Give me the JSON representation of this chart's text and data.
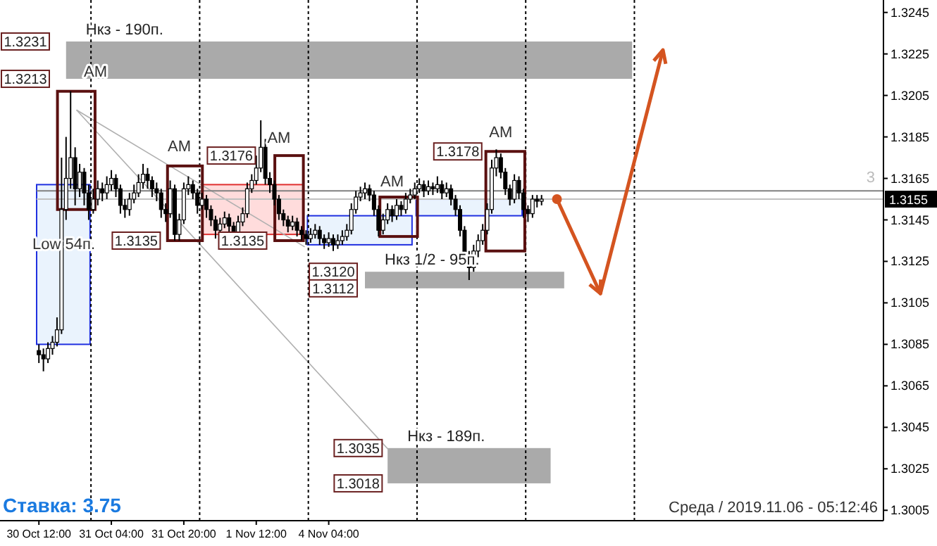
{
  "chart_data": {
    "type": "candlestick",
    "categories": [
      "30 Oct 12:00",
      null,
      null,
      null,
      null,
      null,
      null,
      null,
      null,
      null,
      null,
      null,
      null,
      null,
      null,
      null,
      "31 Oct 04:00",
      null,
      null,
      null,
      null,
      null,
      null,
      null,
      null,
      null,
      null,
      null,
      null,
      null,
      null,
      null,
      "31 Oct 20:00",
      null,
      null,
      null,
      null,
      null,
      null,
      null,
      null,
      null,
      null,
      null,
      null,
      null,
      null,
      null,
      "1 Nov 12:00",
      null,
      null,
      null,
      null,
      null,
      null,
      null,
      null,
      null,
      null,
      null,
      null,
      null,
      null,
      null,
      "4 Nov 04:00",
      null,
      null,
      null,
      null,
      null,
      null,
      null,
      null,
      null,
      null,
      null,
      null,
      null,
      null,
      null,
      null,
      null,
      null,
      null,
      null,
      null,
      null,
      null,
      null,
      null,
      null,
      null,
      null,
      null,
      null,
      null,
      null,
      null,
      null,
      null,
      null,
      null,
      null,
      null,
      null,
      null,
      null,
      null,
      null,
      null,
      null,
      null,
      null,
      null,
      null,
      null,
      null,
      null,
      null,
      null,
      null,
      null,
      null,
      null,
      null,
      null,
      null,
      null,
      null,
      null,
      null,
      null,
      null,
      null,
      null,
      null,
      null,
      null,
      null,
      null,
      null,
      null,
      null,
      null,
      null,
      null,
      null,
      null,
      null,
      null,
      null,
      null,
      null,
      null,
      null,
      null,
      null,
      null,
      null,
      null,
      null,
      null,
      null,
      null,
      null,
      null,
      null,
      null,
      null,
      null,
      null,
      null,
      null,
      null,
      null,
      null,
      null,
      null,
      null,
      null,
      null,
      null,
      null,
      null,
      null,
      null,
      null
    ],
    "ohlc": [
      [
        1.3082,
        1.3085,
        1.3076,
        1.308
      ],
      [
        1.308,
        1.3083,
        1.3072,
        1.3078
      ],
      [
        1.3078,
        1.3086,
        1.3076,
        1.3083
      ],
      [
        1.3083,
        1.3089,
        1.308,
        1.3086
      ],
      [
        1.3086,
        1.3098,
        1.3084,
        1.3092
      ],
      [
        1.3092,
        1.3175,
        1.309,
        1.315
      ],
      [
        1.315,
        1.3185,
        1.3145,
        1.3165
      ],
      [
        1.3165,
        1.3207,
        1.316,
        1.3175
      ],
      [
        1.3175,
        1.318,
        1.3152,
        1.316
      ],
      [
        1.316,
        1.3172,
        1.3156,
        1.3168
      ],
      [
        1.3168,
        1.317,
        1.3152,
        1.3158
      ],
      [
        1.3158,
        1.3162,
        1.3145,
        1.315
      ],
      [
        1.315,
        1.316,
        1.3148,
        1.3155
      ],
      [
        1.3155,
        1.3164,
        1.3152,
        1.316
      ],
      [
        1.316,
        1.3163,
        1.3154,
        1.3158
      ],
      [
        1.3158,
        1.3166,
        1.3155,
        1.3162
      ],
      [
        1.3162,
        1.3169,
        1.3159,
        1.3165
      ],
      [
        1.3165,
        1.3167,
        1.3156,
        1.316
      ],
      [
        1.316,
        1.3162,
        1.3148,
        1.3152
      ],
      [
        1.3152,
        1.3155,
        1.3146,
        1.315
      ],
      [
        1.315,
        1.3158,
        1.3147,
        1.3155
      ],
      [
        1.3155,
        1.3162,
        1.3153,
        1.3158
      ],
      [
        1.3158,
        1.3167,
        1.3156,
        1.3163
      ],
      [
        1.3163,
        1.3172,
        1.316,
        1.3167
      ],
      [
        1.3167,
        1.317,
        1.316,
        1.3164
      ],
      [
        1.3164,
        1.3166,
        1.3156,
        1.316
      ],
      [
        1.316,
        1.3163,
        1.3154,
        1.3158
      ],
      [
        1.3158,
        1.316,
        1.3146,
        1.315
      ],
      [
        1.315,
        1.3153,
        1.3144,
        1.3148
      ],
      [
        1.3148,
        1.3164,
        1.3146,
        1.316
      ],
      [
        1.316,
        1.3162,
        1.3135,
        1.3138
      ],
      [
        1.3138,
        1.3148,
        1.3135,
        1.3145
      ],
      [
        1.3145,
        1.3163,
        1.3143,
        1.316
      ],
      [
        1.316,
        1.3166,
        1.3157,
        1.3162
      ],
      [
        1.3162,
        1.3164,
        1.3155,
        1.3158
      ],
      [
        1.3158,
        1.316,
        1.3148,
        1.3152
      ],
      [
        1.3152,
        1.3158,
        1.315,
        1.3155
      ],
      [
        1.3155,
        1.3157,
        1.3146,
        1.315
      ],
      [
        1.315,
        1.3152,
        1.3142,
        1.3145
      ],
      [
        1.3145,
        1.3147,
        1.3136,
        1.314
      ],
      [
        1.314,
        1.3146,
        1.3138,
        1.3143
      ],
      [
        1.3143,
        1.3149,
        1.3141,
        1.3146
      ],
      [
        1.3146,
        1.3148,
        1.3139,
        1.3142
      ],
      [
        1.3142,
        1.3144,
        1.3135,
        1.3138
      ],
      [
        1.3138,
        1.3147,
        1.3136,
        1.3144
      ],
      [
        1.3144,
        1.3151,
        1.3142,
        1.3148
      ],
      [
        1.3148,
        1.3163,
        1.3146,
        1.316
      ],
      [
        1.316,
        1.3167,
        1.3158,
        1.3164
      ],
      [
        1.3164,
        1.3176,
        1.3162,
        1.317
      ],
      [
        1.317,
        1.3193,
        1.3168,
        1.318
      ],
      [
        1.318,
        1.3184,
        1.3162,
        1.3165
      ],
      [
        1.3165,
        1.3168,
        1.3158,
        1.3162
      ],
      [
        1.3162,
        1.3164,
        1.3152,
        1.3155
      ],
      [
        1.3155,
        1.3157,
        1.3145,
        1.3148
      ],
      [
        1.3148,
        1.315,
        1.3142,
        1.3145
      ],
      [
        1.3145,
        1.3147,
        1.3139,
        1.3142
      ],
      [
        1.3142,
        1.3147,
        1.314,
        1.3144
      ],
      [
        1.3144,
        1.3146,
        1.3137,
        1.314
      ],
      [
        1.314,
        1.3142,
        1.3135,
        1.3138
      ],
      [
        1.3138,
        1.314,
        1.3133,
        1.3136
      ],
      [
        1.3136,
        1.3141,
        1.3134,
        1.3138
      ],
      [
        1.3138,
        1.3143,
        1.3136,
        1.314
      ],
      [
        1.314,
        1.3142,
        1.3133,
        1.3136
      ],
      [
        1.3136,
        1.3138,
        1.3131,
        1.3134
      ],
      [
        1.3134,
        1.3139,
        1.3132,
        1.3136
      ],
      [
        1.3136,
        1.3138,
        1.313,
        1.3133
      ],
      [
        1.3133,
        1.3138,
        1.3131,
        1.3135
      ],
      [
        1.3135,
        1.314,
        1.3133,
        1.3137
      ],
      [
        1.3137,
        1.3143,
        1.3135,
        1.314
      ],
      [
        1.314,
        1.3153,
        1.3138,
        1.315
      ],
      [
        1.315,
        1.3159,
        1.3148,
        1.3156
      ],
      [
        1.3156,
        1.3161,
        1.3154,
        1.3158
      ],
      [
        1.3158,
        1.3163,
        1.3155,
        1.316
      ],
      [
        1.316,
        1.3162,
        1.3154,
        1.3157
      ],
      [
        1.3157,
        1.3159,
        1.3147,
        1.315
      ],
      [
        1.315,
        1.3152,
        1.3137,
        1.314
      ],
      [
        1.314,
        1.3148,
        1.3138,
        1.3145
      ],
      [
        1.3145,
        1.3153,
        1.3143,
        1.315
      ],
      [
        1.315,
        1.3152,
        1.3144,
        1.3147
      ],
      [
        1.3147,
        1.3155,
        1.3145,
        1.3152
      ],
      [
        1.3152,
        1.3154,
        1.3147,
        1.315
      ],
      [
        1.315,
        1.3158,
        1.3148,
        1.3155
      ],
      [
        1.3155,
        1.316,
        1.3153,
        1.3157
      ],
      [
        1.3157,
        1.3163,
        1.3155,
        1.316
      ],
      [
        1.316,
        1.3165,
        1.3158,
        1.3162
      ],
      [
        1.3162,
        1.3164,
        1.3156,
        1.3159
      ],
      [
        1.3159,
        1.3164,
        1.3157,
        1.3161
      ],
      [
        1.3161,
        1.3163,
        1.3157,
        1.316
      ],
      [
        1.316,
        1.3166,
        1.3158,
        1.3162
      ],
      [
        1.3162,
        1.3164,
        1.3155,
        1.3158
      ],
      [
        1.3158,
        1.3163,
        1.3156,
        1.316
      ],
      [
        1.316,
        1.3162,
        1.3152,
        1.3155
      ],
      [
        1.3155,
        1.3157,
        1.3147,
        1.315
      ],
      [
        1.315,
        1.3152,
        1.3137,
        1.314
      ],
      [
        1.314,
        1.3142,
        1.3125,
        1.3128
      ],
      [
        1.3128,
        1.313,
        1.3116,
        1.3122
      ],
      [
        1.3122,
        1.3133,
        1.312,
        1.313
      ],
      [
        1.313,
        1.3138,
        1.3127,
        1.3135
      ],
      [
        1.3135,
        1.3143,
        1.3133,
        1.314
      ],
      [
        1.314,
        1.3153,
        1.3138,
        1.315
      ],
      [
        1.315,
        1.3174,
        1.3148,
        1.317
      ],
      [
        1.317,
        1.3179,
        1.3166,
        1.3175
      ],
      [
        1.3175,
        1.3177,
        1.3165,
        1.3168
      ],
      [
        1.3168,
        1.317,
        1.3157,
        1.316
      ],
      [
        1.316,
        1.3162,
        1.3152,
        1.3155
      ],
      [
        1.3155,
        1.3167,
        1.3153,
        1.3164
      ],
      [
        1.3164,
        1.3166,
        1.3155,
        1.3158
      ],
      [
        1.3158,
        1.316,
        1.3146,
        1.315
      ],
      [
        1.315,
        1.3152,
        1.3144,
        1.3148
      ],
      [
        1.3148,
        1.3157,
        1.3146,
        1.3155
      ],
      [
        1.3155,
        1.3157,
        1.3151,
        1.3154
      ],
      [
        1.3154,
        1.3157,
        1.3152,
        1.3155
      ],
      null,
      null,
      null,
      null,
      null,
      null,
      null,
      null,
      null,
      null,
      null,
      null,
      null,
      null,
      null,
      null,
      null,
      null,
      null,
      null,
      null,
      null,
      null,
      null,
      null,
      null,
      null,
      null,
      null,
      null,
      null,
      null,
      null,
      null,
      null,
      null,
      null,
      null,
      null,
      null,
      null,
      null,
      null,
      null,
      null,
      null,
      null,
      null,
      null,
      null,
      null,
      null,
      null,
      null,
      null,
      null,
      null,
      null,
      null,
      null,
      null,
      null,
      null,
      null,
      null,
      null,
      null,
      null,
      null,
      null,
      null,
      null,
      null,
      null,
      null
    ],
    "ylim": [
      1.3,
      1.3251
    ],
    "yticks": [
      1.3005,
      1.3025,
      1.3045,
      1.3065,
      1.3085,
      1.3105,
      1.3125,
      1.3145,
      1.3165,
      1.3185,
      1.3205,
      1.3225,
      1.3245
    ],
    "ref_lines": [
      {
        "axis": "y",
        "value": 1.3159,
        "color": "#808080"
      },
      {
        "axis": "y",
        "value": 1.3155,
        "label": "1.3155",
        "color": "#c0c0c0"
      }
    ],
    "bands": [
      {
        "axis": "y",
        "from": 1.3213,
        "to": 1.3231,
        "label": "Нкз - 190п.",
        "color": "#aaaaaa"
      },
      {
        "axis": "y",
        "from": 1.3112,
        "to": 1.312,
        "label": "Нкз 1/2 - 95п.",
        "color": "#aaaaaa"
      },
      {
        "axis": "y",
        "from": 1.3018,
        "to": 1.3035,
        "label": "Нкз - 189п.",
        "color": "#aaaaaa"
      }
    ],
    "annotations": [
      "Ставка: 3.75",
      "Среда / 2019.11.06 - 05:12:46",
      "3",
      "1.3231",
      "1.3213",
      "1.3176",
      "1.3135",
      "1.3135",
      "1.3178",
      "1.3120",
      "1.3112",
      "1.3035",
      "1.3018",
      "AM",
      "AM",
      "AM",
      "AM",
      "AM",
      "Low 54п."
    ]
  }
}
